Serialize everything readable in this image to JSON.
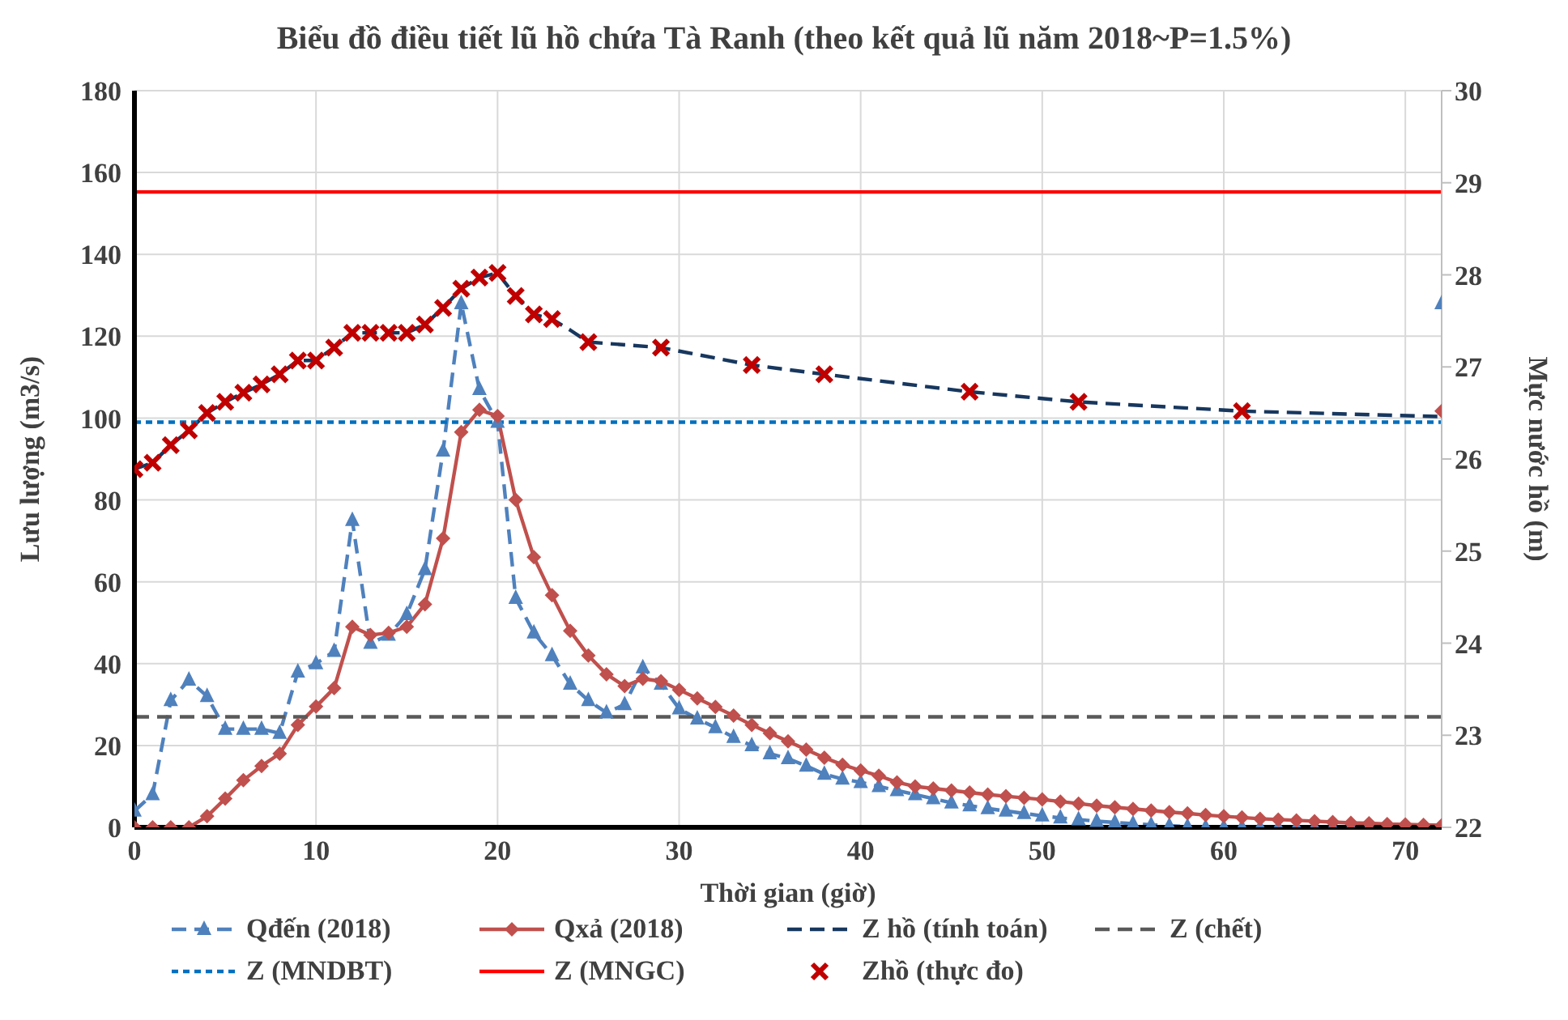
{
  "chart_data": {
    "type": "line",
    "title": "Biểu đồ điều tiết lũ hồ chứa Tà Ranh (theo kết quả lũ năm 2018~P=1.5%)",
    "xlabel": "Thời gian (giờ)",
    "ylabel": "Lưu lượng (m3/s)",
    "y2label": "Mực nước hồ (m)",
    "xlim": [
      0,
      72
    ],
    "xticks": [
      0,
      10,
      20,
      30,
      40,
      50,
      60,
      70
    ],
    "ylim": [
      0,
      180
    ],
    "yticks": [
      0,
      20,
      40,
      60,
      80,
      100,
      120,
      140,
      160,
      180
    ],
    "y2lim": [
      22,
      30
    ],
    "y2ticks": [
      22,
      23,
      24,
      25,
      26,
      27,
      28,
      29,
      30
    ],
    "grid": true,
    "legend": "bottom",
    "series": [
      {
        "name": "Qđến (2018)",
        "color": "#4f81bd",
        "marker": "triangle",
        "line_style": "dashed",
        "x": [
          0,
          1,
          2,
          3,
          4,
          5,
          6,
          7,
          8,
          9,
          10,
          11,
          12,
          13,
          14,
          15,
          16,
          17,
          18,
          19,
          20,
          21,
          22,
          23,
          24,
          25,
          26,
          27,
          28,
          29,
          30,
          31,
          32,
          33,
          34,
          35,
          36,
          37,
          38,
          39,
          40,
          41,
          42,
          43,
          44,
          45,
          46,
          47,
          48,
          49,
          50,
          51,
          52,
          53,
          54,
          55,
          56,
          57,
          58,
          59,
          60,
          61,
          62,
          63,
          64,
          65,
          66,
          67,
          68
        ],
        "values": [
          4,
          8,
          31,
          36,
          32,
          24,
          24,
          24,
          23,
          38,
          40,
          43,
          75,
          45,
          47,
          52,
          63,
          92,
          128,
          107,
          99,
          56,
          47.5,
          42,
          35,
          31,
          28,
          30,
          39,
          35,
          29,
          26.5,
          24.4,
          22,
          20,
          18,
          16.8,
          15,
          13,
          11.8,
          11,
          10,
          9,
          8,
          7,
          6,
          5.3,
          4.6,
          4,
          3.4,
          2.8,
          2.3,
          1.9,
          1.5,
          1.2,
          0.9,
          0.6,
          0.4,
          0.2,
          0,
          0,
          0,
          0,
          0,
          0,
          0,
          0,
          0,
          0
        ]
      },
      {
        "name": "Qxả (2018)",
        "color": "#c0504d",
        "marker": "diamond",
        "line_style": "solid",
        "x": [
          0,
          1,
          2,
          3,
          4,
          5,
          6,
          7,
          8,
          9,
          10,
          11,
          12,
          13,
          14,
          15,
          16,
          17,
          18,
          19,
          20,
          21,
          22,
          23,
          24,
          25,
          26,
          27,
          28,
          29,
          30,
          31,
          32,
          33,
          34,
          35,
          36,
          37,
          38,
          39,
          40,
          41,
          42,
          43,
          44,
          45,
          46,
          47,
          48,
          49,
          50,
          51,
          52,
          53,
          54,
          55,
          56,
          57,
          58,
          59,
          60,
          61,
          62,
          63,
          64,
          65,
          66,
          67,
          68,
          69,
          70,
          71,
          72
        ],
        "values": [
          0,
          0,
          0,
          0,
          2.7,
          7,
          11.5,
          15,
          18,
          25,
          29.5,
          34,
          49,
          47,
          47.5,
          49,
          54.5,
          70.6,
          96.6,
          102,
          100.5,
          80,
          66,
          56.7,
          48,
          42,
          37.4,
          34.5,
          36.3,
          35.7,
          33.6,
          31.5,
          29.4,
          27.3,
          25,
          23,
          21,
          19,
          17,
          15.3,
          13.9,
          12.6,
          11,
          10,
          9.5,
          9,
          8.5,
          8,
          7.6,
          7.2,
          6.8,
          6.3,
          5.8,
          5.3,
          4.9,
          4.5,
          4.1,
          3.7,
          3.4,
          3,
          2.7,
          2.4,
          2.1,
          1.9,
          1.7,
          1.5,
          1.3,
          1.1,
          1,
          0.8,
          0.7,
          0.6,
          0.5
        ]
      },
      {
        "name": "Z hồ (tính toán)",
        "axis": "y2",
        "color": "#17375e",
        "marker": "none",
        "line_style": "dashed",
        "x": [
          0,
          1,
          2,
          3,
          4,
          5,
          6,
          7,
          8,
          9,
          10,
          11,
          12,
          13,
          14,
          15,
          16,
          17,
          18,
          19,
          20,
          21,
          22,
          23,
          24,
          25,
          29,
          34,
          38,
          46,
          52,
          61,
          72
        ],
        "values": [
          25.89,
          25.96,
          26.15,
          26.31,
          26.5,
          26.62,
          26.72,
          26.81,
          26.92,
          27.07,
          27.07,
          27.21,
          27.37,
          27.37,
          27.37,
          27.37,
          27.46,
          27.64,
          27.85,
          27.97,
          28.02,
          27.77,
          27.57,
          27.52,
          27.4,
          27.27,
          27.21,
          27.02,
          26.92,
          26.73,
          26.62,
          26.52,
          26.46
        ]
      },
      {
        "name": "Z (chết)",
        "axis": "y2",
        "color": "#595959",
        "marker": "none",
        "line_style": "dashed",
        "x": [
          0,
          72
        ],
        "values": [
          23.2,
          23.2
        ]
      },
      {
        "name": "Z (MNDBT)",
        "axis": "y2",
        "color": "#0070c0",
        "marker": "none",
        "line_style": "dotted",
        "x": [
          0,
          72
        ],
        "values": [
          26.4,
          26.4
        ]
      },
      {
        "name": "Z (MNGC)",
        "axis": "y2",
        "color": "#ff0000",
        "marker": "none",
        "line_style": "solid",
        "x": [
          0,
          72
        ],
        "values": [
          28.9,
          28.9
        ]
      },
      {
        "name": "Zhồ (thực đo)",
        "type": "scatter",
        "axis": "y2",
        "color": "#c00000",
        "marker": "cross",
        "x": [
          0,
          1,
          2,
          3,
          4,
          5,
          6,
          7,
          8,
          9,
          10,
          11,
          12,
          13,
          14,
          15,
          16,
          17,
          18,
          19,
          20,
          21,
          22,
          23,
          25,
          29,
          34,
          38,
          46,
          52,
          61
        ],
        "values": [
          25.89,
          25.96,
          26.15,
          26.31,
          26.5,
          26.62,
          26.72,
          26.81,
          26.92,
          27.07,
          27.07,
          27.21,
          27.37,
          27.37,
          27.37,
          27.37,
          27.46,
          27.64,
          27.85,
          27.97,
          28.02,
          27.77,
          27.57,
          27.52,
          27.27,
          27.21,
          27.02,
          26.92,
          26.73,
          26.62,
          26.52
        ]
      },
      {
        "type": "scatter",
        "color": "#4f81bd",
        "marker": "triangle",
        "x": [
          72
        ],
        "values": [
          128
        ]
      },
      {
        "type": "scatter",
        "color": "#c0504d",
        "marker": "diamond",
        "x": [
          72
        ],
        "values": [
          101.7
        ]
      }
    ]
  }
}
